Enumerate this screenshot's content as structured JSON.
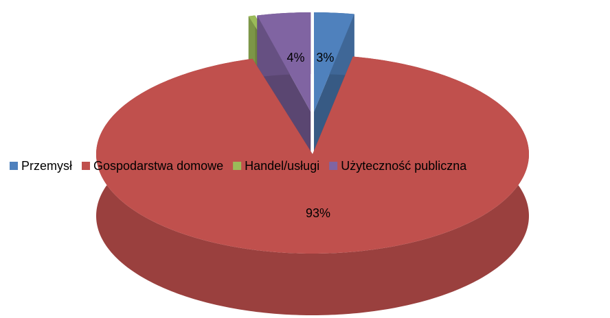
{
  "chart_data": {
    "type": "pie3d",
    "categories": [
      "Przemysł",
      "Gospodarstwa domowe",
      "Handel/usługi",
      "Użyteczność publiczna"
    ],
    "values": [
      3,
      93,
      0.5,
      4
    ],
    "value_labels": [
      "3%",
      "93%",
      null,
      "4%"
    ],
    "colors": [
      "#4f81bd",
      "#c0504d",
      "#9bbb59",
      "#8064a2"
    ],
    "legend": "middle"
  }
}
